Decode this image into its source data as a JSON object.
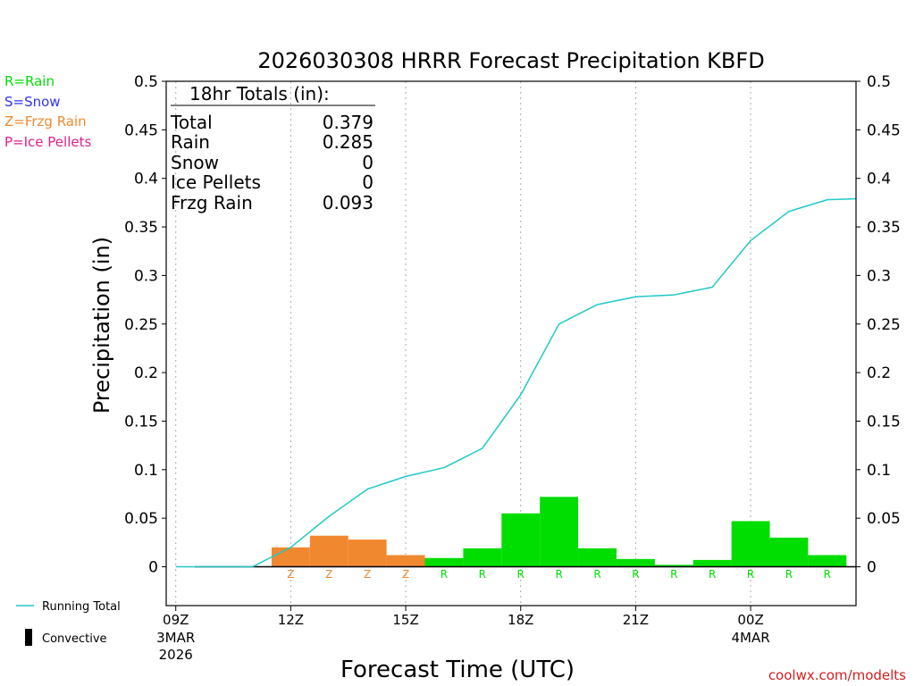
{
  "title": "2026030308 HRRR Forecast Precipitation KBFD",
  "ylabel": "Precipitation (in)",
  "xlabel": "Forecast Time (UTC)",
  "watermark": "coolwx.com/modelts",
  "ptype_legend": [
    {
      "label": "R=Rain",
      "color": "#00dd00"
    },
    {
      "label": "S=Snow",
      "color": "#3333ee"
    },
    {
      "label": "Z=Frzg Rain",
      "color": "#f08830"
    },
    {
      "label": "P=Ice Pellets",
      "color": "#e0208a"
    }
  ],
  "line_legend": {
    "running_total": "Running Total",
    "convective": "Convective"
  },
  "totals": {
    "header": "18hr Totals (in):",
    "rows": [
      {
        "label": "Total",
        "value": "0.379"
      },
      {
        "label": "Rain",
        "value": "0.285"
      },
      {
        "label": "Snow",
        "value": "0"
      },
      {
        "label": "Ice Pellets",
        "value": "0"
      },
      {
        "label": "Frzg Rain",
        "value": "0.093"
      }
    ]
  },
  "colors": {
    "rain": "#00dd00",
    "frzg_rain": "#f08830",
    "running_total": "#20c8c8",
    "convective": "#000000",
    "grid": "#aaaaaa"
  },
  "chart_data": {
    "type": "bar",
    "x_ticks": [
      {
        "label": "09Z",
        "sublabels": [
          "3MAR",
          "2026"
        ],
        "hour": 9
      },
      {
        "label": "12Z",
        "sublabels": [],
        "hour": 12
      },
      {
        "label": "15Z",
        "sublabels": [],
        "hour": 15
      },
      {
        "label": "18Z",
        "sublabels": [],
        "hour": 18
      },
      {
        "label": "21Z",
        "sublabels": [],
        "hour": 21
      },
      {
        "label": "00Z",
        "sublabels": [
          "4MAR"
        ],
        "hour": 24
      }
    ],
    "xlim": [
      8.75,
      26.75
    ],
    "ylim": [
      -0.04,
      0.5
    ],
    "yticks": [
      0,
      0.05,
      0.1,
      0.15,
      0.2,
      0.25,
      0.3,
      0.35,
      0.4,
      0.45,
      0.5
    ],
    "ytick_labels": [
      "0",
      "0.05",
      "0.1",
      "0.15",
      "0.2",
      "0.25",
      "0.3",
      "0.35",
      "0.4",
      "0.45",
      "0.5"
    ],
    "bars": [
      {
        "start": 11.5,
        "end": 12.5,
        "value": 0.02,
        "ptype": "Z"
      },
      {
        "start": 12.5,
        "end": 13.5,
        "value": 0.032,
        "ptype": "Z"
      },
      {
        "start": 13.5,
        "end": 14.5,
        "value": 0.028,
        "ptype": "Z"
      },
      {
        "start": 14.5,
        "end": 15.5,
        "value": 0.012,
        "ptype": "Z"
      },
      {
        "start": 15.5,
        "end": 16.5,
        "value": 0.009,
        "ptype": "R"
      },
      {
        "start": 16.5,
        "end": 17.5,
        "value": 0.019,
        "ptype": "R"
      },
      {
        "start": 17.5,
        "end": 18.5,
        "value": 0.055,
        "ptype": "R"
      },
      {
        "start": 18.5,
        "end": 19.5,
        "value": 0.072,
        "ptype": "R"
      },
      {
        "start": 19.5,
        "end": 20.5,
        "value": 0.019,
        "ptype": "R"
      },
      {
        "start": 20.5,
        "end": 21.5,
        "value": 0.008,
        "ptype": "R"
      },
      {
        "start": 21.5,
        "end": 22.5,
        "value": 0.002,
        "ptype": "R"
      },
      {
        "start": 22.5,
        "end": 23.5,
        "value": 0.007,
        "ptype": "R"
      },
      {
        "start": 23.5,
        "end": 24.5,
        "value": 0.047,
        "ptype": "R"
      },
      {
        "start": 24.5,
        "end": 25.5,
        "value": 0.03,
        "ptype": "R"
      },
      {
        "start": 25.5,
        "end": 26.5,
        "value": 0.012,
        "ptype": "R"
      }
    ],
    "ptype_markers": [
      {
        "hour": 12,
        "label": "Z"
      },
      {
        "hour": 13,
        "label": "Z"
      },
      {
        "hour": 14,
        "label": "Z"
      },
      {
        "hour": 15,
        "label": "Z"
      },
      {
        "hour": 16,
        "label": "R"
      },
      {
        "hour": 17,
        "label": "R"
      },
      {
        "hour": 18,
        "label": "R"
      },
      {
        "hour": 19,
        "label": "R"
      },
      {
        "hour": 20,
        "label": "R"
      },
      {
        "hour": 21,
        "label": "R"
      },
      {
        "hour": 22,
        "label": "R"
      },
      {
        "hour": 23,
        "label": "R"
      },
      {
        "hour": 24,
        "label": "R"
      },
      {
        "hour": 25,
        "label": "R"
      },
      {
        "hour": 26,
        "label": "R"
      }
    ],
    "running_total": {
      "name": "Running Total",
      "x": [
        9,
        10,
        11,
        12,
        13,
        14,
        15,
        16,
        17,
        18,
        19,
        20,
        21,
        22,
        23,
        24,
        25,
        26,
        26.75
      ],
      "y": [
        0,
        0,
        0,
        0.02,
        0.052,
        0.08,
        0.093,
        0.102,
        0.122,
        0.177,
        0.25,
        0.27,
        0.278,
        0.28,
        0.288,
        0.336,
        0.366,
        0.378,
        0.379
      ]
    },
    "convective": {
      "name": "Convective",
      "start": 8.75,
      "end": 26.75,
      "value": 0
    }
  }
}
